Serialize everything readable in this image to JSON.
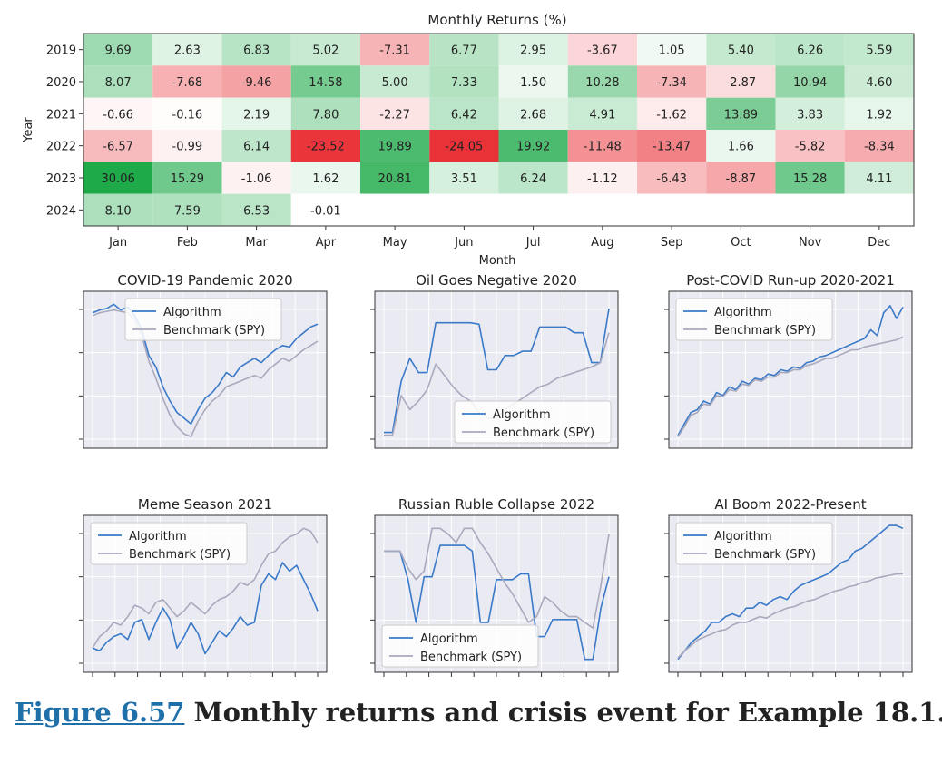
{
  "chart_data": [
    {
      "type": "heatmap",
      "title": "Monthly Returns (%)",
      "xlabel": "Month",
      "ylabel": "Year",
      "columns": [
        "Jan",
        "Feb",
        "Mar",
        "Apr",
        "May",
        "Jun",
        "Jul",
        "Aug",
        "Sep",
        "Oct",
        "Nov",
        "Dec"
      ],
      "rows": [
        "2019",
        "2020",
        "2021",
        "2022",
        "2023",
        "2024"
      ],
      "values": [
        [
          "9.69",
          "2.63",
          "6.83",
          "5.02",
          "-7.31",
          "6.77",
          "2.95",
          "-3.67",
          "1.05",
          "5.40",
          "6.26",
          "5.59"
        ],
        [
          "8.07",
          "-7.68",
          "-9.46",
          "14.58",
          "5.00",
          "7.33",
          "1.50",
          "10.28",
          "-7.34",
          "-2.87",
          "10.94",
          "4.60"
        ],
        [
          "-0.66",
          "-0.16",
          "2.19",
          "7.80",
          "-2.27",
          "6.42",
          "2.68",
          "4.91",
          "-1.62",
          "13.89",
          "3.83",
          "1.92"
        ],
        [
          "-6.57",
          "-0.99",
          "6.14",
          "-23.52",
          "19.89",
          "-24.05",
          "19.92",
          "-11.48",
          "-13.47",
          "1.66",
          "-5.82",
          "-8.34"
        ],
        [
          "30.06",
          "15.29",
          "-1.06",
          "1.62",
          "20.81",
          "3.51",
          "6.24",
          "-1.12",
          "-6.43",
          "-8.87",
          "15.28",
          "4.11"
        ],
        [
          "8.10",
          "7.59",
          "6.53",
          "-0.01",
          "",
          "",
          "",
          "",
          "",
          "",
          "",
          ""
        ]
      ],
      "colors": {
        "positive": "#1faa4a",
        "negative": "#e8232a",
        "neutral": "#ffffff",
        "text": "#222222"
      }
    },
    {
      "type": "line",
      "title": "COVID-19 Pandemic 2020",
      "legend_position": "top-center",
      "grid": true,
      "series": [
        {
          "name": "Algorithm",
          "color": "#3a7ac8",
          "values": [
            0.9,
            0.92,
            0.93,
            0.96,
            0.92,
            0.94,
            0.88,
            0.78,
            0.6,
            0.52,
            0.38,
            0.28,
            0.2,
            0.16,
            0.12,
            0.22,
            0.3,
            0.34,
            0.4,
            0.48,
            0.45,
            0.52,
            0.55,
            0.58,
            0.55,
            0.6,
            0.64,
            0.67,
            0.66,
            0.72,
            0.76,
            0.8,
            0.82
          ]
        },
        {
          "name": "Benchmark (SPY)",
          "color": "#a9a9be",
          "values": [
            0.88,
            0.9,
            0.91,
            0.92,
            0.91,
            0.9,
            0.85,
            0.74,
            0.56,
            0.44,
            0.3,
            0.18,
            0.1,
            0.05,
            0.03,
            0.14,
            0.22,
            0.28,
            0.32,
            0.38,
            0.4,
            0.42,
            0.44,
            0.46,
            0.44,
            0.5,
            0.54,
            0.58,
            0.56,
            0.6,
            0.64,
            0.67,
            0.7
          ]
        }
      ]
    },
    {
      "type": "line",
      "title": "Oil Goes Negative 2020",
      "legend_position": "bottom-right",
      "grid": true,
      "series": [
        {
          "name": "Algorithm",
          "color": "#3a7ac8",
          "values": [
            0.06,
            0.06,
            0.42,
            0.58,
            0.48,
            0.48,
            0.83,
            0.83,
            0.83,
            0.83,
            0.83,
            0.82,
            0.5,
            0.5,
            0.6,
            0.6,
            0.63,
            0.63,
            0.8,
            0.8,
            0.8,
            0.8,
            0.76,
            0.76,
            0.55,
            0.55,
            0.93
          ]
        },
        {
          "name": "Benchmark (SPY)",
          "color": "#a9a9be",
          "values": [
            0.04,
            0.04,
            0.32,
            0.22,
            0.28,
            0.36,
            0.54,
            0.46,
            0.38,
            0.32,
            0.28,
            0.2,
            0.16,
            0.16,
            0.22,
            0.26,
            0.3,
            0.34,
            0.38,
            0.4,
            0.44,
            0.46,
            0.48,
            0.5,
            0.52,
            0.55,
            0.76
          ]
        }
      ]
    },
    {
      "type": "line",
      "title": "Post-COVID Run-up 2020-2021",
      "legend_position": "top-left",
      "grid": true,
      "series": [
        {
          "name": "Algorithm",
          "color": "#3a7ac8",
          "values": [
            0.04,
            0.12,
            0.2,
            0.22,
            0.28,
            0.26,
            0.34,
            0.32,
            0.38,
            0.36,
            0.42,
            0.4,
            0.44,
            0.43,
            0.47,
            0.46,
            0.5,
            0.49,
            0.52,
            0.51,
            0.55,
            0.56,
            0.59,
            0.6,
            0.62,
            0.64,
            0.66,
            0.68,
            0.7,
            0.72,
            0.78,
            0.74,
            0.9,
            0.95,
            0.86,
            0.94
          ]
        },
        {
          "name": "Benchmark (SPY)",
          "color": "#a9a9be",
          "values": [
            0.03,
            0.1,
            0.18,
            0.2,
            0.26,
            0.25,
            0.32,
            0.31,
            0.36,
            0.35,
            0.4,
            0.39,
            0.43,
            0.42,
            0.45,
            0.45,
            0.48,
            0.48,
            0.5,
            0.5,
            0.53,
            0.54,
            0.56,
            0.58,
            0.58,
            0.6,
            0.62,
            0.64,
            0.64,
            0.66,
            0.67,
            0.68,
            0.69,
            0.7,
            0.71,
            0.73
          ]
        }
      ]
    },
    {
      "type": "line",
      "title": "Meme Season 2021",
      "legend_position": "top-left",
      "grid": true,
      "series": [
        {
          "name": "Algorithm",
          "color": "#3a7ac8",
          "values": [
            0.12,
            0.1,
            0.16,
            0.2,
            0.22,
            0.18,
            0.3,
            0.32,
            0.18,
            0.3,
            0.4,
            0.32,
            0.12,
            0.2,
            0.3,
            0.22,
            0.08,
            0.16,
            0.24,
            0.2,
            0.26,
            0.34,
            0.28,
            0.3,
            0.56,
            0.64,
            0.6,
            0.72,
            0.66,
            0.7,
            0.6,
            0.5,
            0.38
          ]
        },
        {
          "name": "Benchmark (SPY)",
          "color": "#a9a9be",
          "values": [
            0.12,
            0.2,
            0.24,
            0.3,
            0.28,
            0.34,
            0.42,
            0.4,
            0.36,
            0.44,
            0.46,
            0.4,
            0.34,
            0.38,
            0.44,
            0.4,
            0.36,
            0.42,
            0.46,
            0.48,
            0.52,
            0.58,
            0.56,
            0.6,
            0.7,
            0.78,
            0.8,
            0.86,
            0.9,
            0.92,
            0.96,
            0.94,
            0.86
          ]
        }
      ]
    },
    {
      "type": "line",
      "title": "Russian Ruble Collapse 2022",
      "legend_position": "bottom-left",
      "grid": true,
      "series": [
        {
          "name": "Algorithm",
          "color": "#3a7ac8",
          "values": [
            0.8,
            0.8,
            0.8,
            0.6,
            0.3,
            0.62,
            0.62,
            0.84,
            0.84,
            0.84,
            0.84,
            0.8,
            0.3,
            0.3,
            0.6,
            0.6,
            0.6,
            0.64,
            0.64,
            0.2,
            0.2,
            0.32,
            0.32,
            0.32,
            0.32,
            0.04,
            0.04,
            0.4,
            0.62
          ]
        },
        {
          "name": "Benchmark (SPY)",
          "color": "#a9a9be",
          "values": [
            0.8,
            0.8,
            0.8,
            0.68,
            0.6,
            0.66,
            0.96,
            0.96,
            0.92,
            0.86,
            0.96,
            0.96,
            0.86,
            0.78,
            0.68,
            0.58,
            0.5,
            0.4,
            0.3,
            0.34,
            0.48,
            0.44,
            0.38,
            0.34,
            0.34,
            0.3,
            0.26,
            0.56,
            0.92
          ]
        }
      ]
    },
    {
      "type": "line",
      "title": "AI Boom 2022-Present",
      "legend_position": "top-left",
      "grid": true,
      "series": [
        {
          "name": "Algorithm",
          "color": "#3a7ac8",
          "values": [
            0.04,
            0.1,
            0.16,
            0.2,
            0.24,
            0.3,
            0.3,
            0.34,
            0.36,
            0.34,
            0.4,
            0.4,
            0.44,
            0.42,
            0.46,
            0.48,
            0.46,
            0.52,
            0.56,
            0.58,
            0.6,
            0.62,
            0.64,
            0.68,
            0.72,
            0.74,
            0.8,
            0.82,
            0.86,
            0.9,
            0.94,
            0.98,
            0.98,
            0.96
          ]
        },
        {
          "name": "Benchmark (SPY)",
          "color": "#a9a9be",
          "values": [
            0.05,
            0.1,
            0.14,
            0.18,
            0.2,
            0.22,
            0.24,
            0.25,
            0.28,
            0.3,
            0.3,
            0.32,
            0.34,
            0.33,
            0.36,
            0.38,
            0.4,
            0.41,
            0.43,
            0.45,
            0.46,
            0.48,
            0.5,
            0.52,
            0.53,
            0.55,
            0.56,
            0.58,
            0.59,
            0.61,
            0.62,
            0.63,
            0.64,
            0.64
          ]
        }
      ]
    }
  ],
  "caption": {
    "figure_label": "Figure 6.57",
    "text": "Monthly returns and crisis event for Example 18.1."
  }
}
